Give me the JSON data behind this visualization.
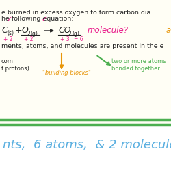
{
  "bg_color": "#fffef5",
  "divider_color": "#4caf50",
  "line1": "e burned in excess oxygen to form carbon dia",
  "line2": "he following equation:",
  "eq_line": "ments, atoms, and molecules are present in the e",
  "bottom_text": "nts,  6 atoms,  & 2 molecules",
  "bottom_text_color": "#5aafe0",
  "bottom_bg": "#ffffff",
  "magenta": "#e91e8c",
  "orange": "#e8960a",
  "green": "#4caf50",
  "dark": "#222222",
  "label_com": "com\nf protons)",
  "label_blocks": "\"building blocks\"",
  "label_two": "two or more atoms \nbonded together"
}
